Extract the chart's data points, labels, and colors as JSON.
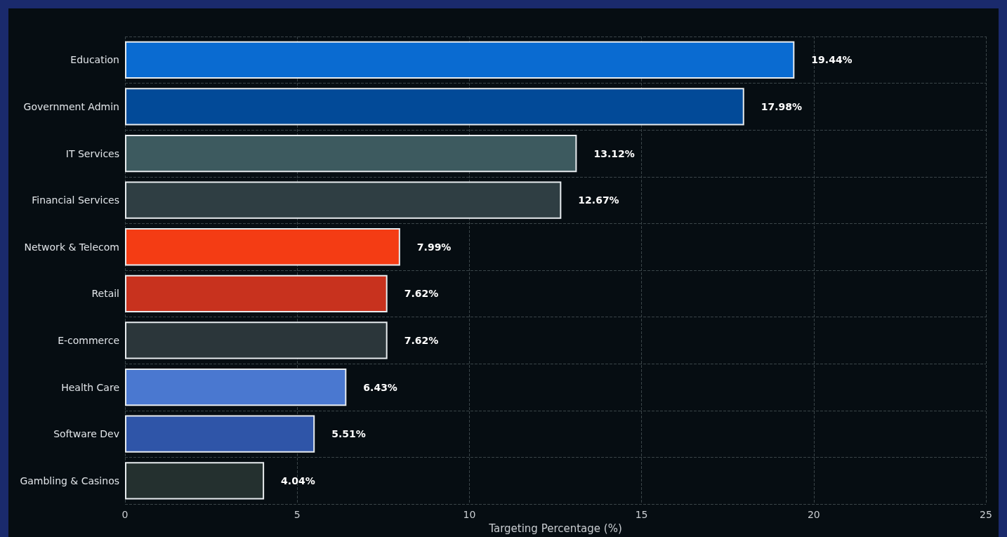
{
  "chart_data": {
    "type": "bar",
    "orientation": "horizontal",
    "xlabel": "Targeting Percentage (%)",
    "categories": [
      "Education",
      "Government Admin",
      "IT Services",
      "Financial Services",
      "Network & Telecom",
      "Retail",
      "E-commerce",
      "Health Care",
      "Software Dev",
      "Gambling & Casinos"
    ],
    "values": [
      19.44,
      17.98,
      13.12,
      12.67,
      7.99,
      7.62,
      7.62,
      6.43,
      5.51,
      4.04
    ],
    "value_labels": [
      "19.44%",
      "17.98%",
      "13.12%",
      "12.67%",
      "7.99%",
      "7.62%",
      "7.62%",
      "6.43%",
      "5.51%",
      "4.04%"
    ],
    "colors": [
      "#0a6bd1",
      "#024a98",
      "#3d5a5f",
      "#2f3e43",
      "#f43c14",
      "#c8321e",
      "#2b363a",
      "#4a78d0",
      "#2f55a8",
      "#24302f"
    ],
    "xlim": [
      0,
      25
    ],
    "xticks": [
      0,
      5,
      10,
      15,
      20,
      25
    ],
    "grid": true
  }
}
